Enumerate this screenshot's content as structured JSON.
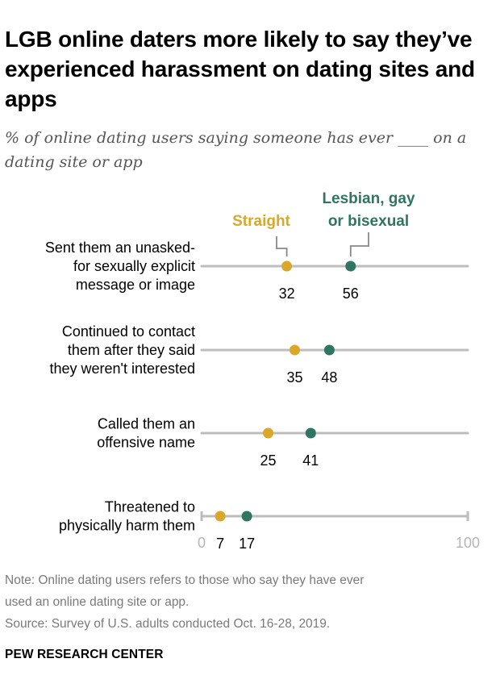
{
  "title": "LGB online daters more likely to say they’ve experienced harassment on dating sites and apps",
  "subtitle": "% of online dating users saying someone has ever ____ on a dating site or app",
  "chart_data": {
    "type": "dot",
    "xlim": [
      0,
      100
    ],
    "axis_tick_labels": [
      "0",
      "100"
    ],
    "categories": [
      [
        "Sent them an unasked-",
        "for sexually explicit",
        "message or image"
      ],
      [
        "Continued to contact",
        "them after they said",
        "they weren't interested"
      ],
      [
        "Called them an",
        "offensive name"
      ],
      [
        "Threatened to",
        "physically harm them"
      ]
    ],
    "series": [
      {
        "name": "Straight",
        "color": "#d9a82b",
        "values": [
          32,
          35,
          25,
          7
        ]
      },
      {
        "name": "Lesbian, gay or bisexual",
        "name_lines": [
          "Lesbian, gay",
          "or bisexual"
        ],
        "color": "#2f7562",
        "values": [
          56,
          48,
          41,
          17
        ]
      }
    ],
    "line_color": "#bdbdbd"
  },
  "note_lines": [
    "Note: Online dating users refers to those who say they have ever",
    "used an online dating site or app.",
    "Source: Survey of U.S. adults conducted Oct. 16-28, 2019."
  ],
  "footer": "PEW RESEARCH CENTER"
}
